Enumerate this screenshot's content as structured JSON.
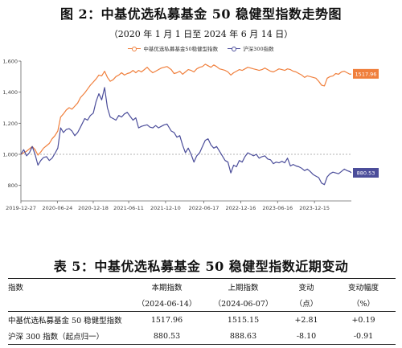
{
  "figure": {
    "title": "图 2：中基优选私募基金 50 稳健型指数走势图",
    "subtitle": "（2020 年 1 月 1 日至 2024 年 6 月 14 日）"
  },
  "chart_data": {
    "type": "line",
    "title": "图 2：中基优选私募基金 50 稳健型指数走势图",
    "subtitle": "（2020 年 1 月 1 日至 2024 年 6 月 14 日）",
    "legend_position": "top-center",
    "xlabel": "",
    "ylabel": "",
    "ylim": [
      700,
      1600
    ],
    "yticks": [
      800,
      1000,
      1200,
      1400,
      1600
    ],
    "ytick_labels": [
      "800",
      "1,000",
      "1,200",
      "1,400",
      "1,600"
    ],
    "xlim": [
      "2019-12-27",
      "2024-06-14"
    ],
    "xtick_labels": [
      "2019-12-27",
      "2020-06-24",
      "2020-12-18",
      "2021-06-11",
      "2021-12-10",
      "2022-06-17",
      "2022-12-16",
      "2023-06-16",
      "2023-12-15"
    ],
    "reference_line": 1000,
    "grid": false,
    "series": [
      {
        "name": "中基优选私募基金50稳健型指数",
        "color": "#f07f3c",
        "last_label": "1517.96",
        "points": [
          [
            "2019-12-27",
            1000
          ],
          [
            "2020-01-10",
            1010
          ],
          [
            "2020-01-24",
            1020
          ],
          [
            "2020-02-07",
            1035
          ],
          [
            "2020-02-21",
            1050
          ],
          [
            "2020-03-06",
            1030
          ],
          [
            "2020-03-20",
            995
          ],
          [
            "2020-04-03",
            1015
          ],
          [
            "2020-04-17",
            1040
          ],
          [
            "2020-05-01",
            1055
          ],
          [
            "2020-05-15",
            1070
          ],
          [
            "2020-05-29",
            1100
          ],
          [
            "2020-06-12",
            1120
          ],
          [
            "2020-06-26",
            1150
          ],
          [
            "2020-07-10",
            1240
          ],
          [
            "2020-07-24",
            1260
          ],
          [
            "2020-08-07",
            1285
          ],
          [
            "2020-08-21",
            1300
          ],
          [
            "2020-09-04",
            1290
          ],
          [
            "2020-09-18",
            1310
          ],
          [
            "2020-10-02",
            1330
          ],
          [
            "2020-10-16",
            1365
          ],
          [
            "2020-11-06",
            1395
          ],
          [
            "2020-11-20",
            1420
          ],
          [
            "2020-12-04",
            1445
          ],
          [
            "2020-12-18",
            1465
          ],
          [
            "2021-01-01",
            1485
          ],
          [
            "2021-01-15",
            1510
          ],
          [
            "2021-01-29",
            1505
          ],
          [
            "2021-02-12",
            1535
          ],
          [
            "2021-02-26",
            1495
          ],
          [
            "2021-03-12",
            1470
          ],
          [
            "2021-03-26",
            1480
          ],
          [
            "2021-04-09",
            1500
          ],
          [
            "2021-04-23",
            1510
          ],
          [
            "2021-05-07",
            1525
          ],
          [
            "2021-05-21",
            1510
          ],
          [
            "2021-06-04",
            1520
          ],
          [
            "2021-06-18",
            1525
          ],
          [
            "2021-07-02",
            1540
          ],
          [
            "2021-07-16",
            1525
          ],
          [
            "2021-07-30",
            1540
          ],
          [
            "2021-08-13",
            1530
          ],
          [
            "2021-08-27",
            1545
          ],
          [
            "2021-09-10",
            1560
          ],
          [
            "2021-09-24",
            1540
          ],
          [
            "2021-10-08",
            1525
          ],
          [
            "2021-10-22",
            1535
          ],
          [
            "2021-11-05",
            1545
          ],
          [
            "2021-11-19",
            1555
          ],
          [
            "2021-12-03",
            1560
          ],
          [
            "2021-12-17",
            1565
          ],
          [
            "2022-01-07",
            1545
          ],
          [
            "2022-01-21",
            1520
          ],
          [
            "2022-02-04",
            1525
          ],
          [
            "2022-02-18",
            1535
          ],
          [
            "2022-03-04",
            1515
          ],
          [
            "2022-03-18",
            1530
          ],
          [
            "2022-04-01",
            1545
          ],
          [
            "2022-04-15",
            1540
          ],
          [
            "2022-04-29",
            1530
          ],
          [
            "2022-05-13",
            1550
          ],
          [
            "2022-05-27",
            1560
          ],
          [
            "2022-06-10",
            1565
          ],
          [
            "2022-06-24",
            1580
          ],
          [
            "2022-07-08",
            1570
          ],
          [
            "2022-07-22",
            1560
          ],
          [
            "2022-08-05",
            1575
          ],
          [
            "2022-08-19",
            1565
          ],
          [
            "2022-09-02",
            1550
          ],
          [
            "2022-09-16",
            1545
          ],
          [
            "2022-09-30",
            1540
          ],
          [
            "2022-10-14",
            1530
          ],
          [
            "2022-10-28",
            1510
          ],
          [
            "2022-11-11",
            1525
          ],
          [
            "2022-11-25",
            1535
          ],
          [
            "2022-12-09",
            1545
          ],
          [
            "2022-12-23",
            1540
          ],
          [
            "2023-01-06",
            1550
          ],
          [
            "2023-01-20",
            1560
          ],
          [
            "2023-02-03",
            1555
          ],
          [
            "2023-02-17",
            1550
          ],
          [
            "2023-03-03",
            1545
          ],
          [
            "2023-03-17",
            1540
          ],
          [
            "2023-03-31",
            1545
          ],
          [
            "2023-04-14",
            1555
          ],
          [
            "2023-04-28",
            1545
          ],
          [
            "2023-05-12",
            1535
          ],
          [
            "2023-05-26",
            1530
          ],
          [
            "2023-06-09",
            1540
          ],
          [
            "2023-06-23",
            1550
          ],
          [
            "2023-07-07",
            1545
          ],
          [
            "2023-07-21",
            1540
          ],
          [
            "2023-08-04",
            1550
          ],
          [
            "2023-08-18",
            1545
          ],
          [
            "2023-09-01",
            1535
          ],
          [
            "2023-09-15",
            1530
          ],
          [
            "2023-09-29",
            1520
          ],
          [
            "2023-10-13",
            1510
          ],
          [
            "2023-10-27",
            1495
          ],
          [
            "2023-11-10",
            1505
          ],
          [
            "2023-11-24",
            1500
          ],
          [
            "2023-12-08",
            1495
          ],
          [
            "2023-12-22",
            1490
          ],
          [
            "2024-01-05",
            1470
          ],
          [
            "2024-01-19",
            1445
          ],
          [
            "2024-02-02",
            1440
          ],
          [
            "2024-02-16",
            1490
          ],
          [
            "2024-03-01",
            1500
          ],
          [
            "2024-03-15",
            1505
          ],
          [
            "2024-03-29",
            1520
          ],
          [
            "2024-04-12",
            1515
          ],
          [
            "2024-04-26",
            1530
          ],
          [
            "2024-05-10",
            1535
          ],
          [
            "2024-05-24",
            1525
          ],
          [
            "2024-06-07",
            1515
          ],
          [
            "2024-06-14",
            1518
          ]
        ]
      },
      {
        "name": "沪深300指数",
        "color": "#4b4d9a",
        "last_label": "880.53",
        "points": [
          [
            "2019-12-27",
            1000
          ],
          [
            "2020-01-10",
            1030
          ],
          [
            "2020-01-24",
            990
          ],
          [
            "2020-02-07",
            1010
          ],
          [
            "2020-02-21",
            1050
          ],
          [
            "2020-03-06",
            1000
          ],
          [
            "2020-03-20",
            930
          ],
          [
            "2020-04-03",
            960
          ],
          [
            "2020-04-17",
            980
          ],
          [
            "2020-05-01",
            985
          ],
          [
            "2020-05-15",
            960
          ],
          [
            "2020-05-29",
            975
          ],
          [
            "2020-06-12",
            1005
          ],
          [
            "2020-06-26",
            1040
          ],
          [
            "2020-07-10",
            1170
          ],
          [
            "2020-07-24",
            1140
          ],
          [
            "2020-08-07",
            1160
          ],
          [
            "2020-08-21",
            1165
          ],
          [
            "2020-09-04",
            1150
          ],
          [
            "2020-09-18",
            1120
          ],
          [
            "2020-10-02",
            1140
          ],
          [
            "2020-10-16",
            1175
          ],
          [
            "2020-11-06",
            1230
          ],
          [
            "2020-11-20",
            1220
          ],
          [
            "2020-12-04",
            1250
          ],
          [
            "2020-12-18",
            1265
          ],
          [
            "2021-01-01",
            1340
          ],
          [
            "2021-01-15",
            1390
          ],
          [
            "2021-01-29",
            1350
          ],
          [
            "2021-02-12",
            1430
          ],
          [
            "2021-02-26",
            1300
          ],
          [
            "2021-03-12",
            1240
          ],
          [
            "2021-03-26",
            1230
          ],
          [
            "2021-04-09",
            1220
          ],
          [
            "2021-04-23",
            1250
          ],
          [
            "2021-05-07",
            1240
          ],
          [
            "2021-05-21",
            1260
          ],
          [
            "2021-06-04",
            1270
          ],
          [
            "2021-06-18",
            1245
          ],
          [
            "2021-07-02",
            1220
          ],
          [
            "2021-07-16",
            1235
          ],
          [
            "2021-07-30",
            1170
          ],
          [
            "2021-08-13",
            1180
          ],
          [
            "2021-08-27",
            1185
          ],
          [
            "2021-09-10",
            1190
          ],
          [
            "2021-09-24",
            1175
          ],
          [
            "2021-10-08",
            1170
          ],
          [
            "2021-10-22",
            1185
          ],
          [
            "2021-11-05",
            1170
          ],
          [
            "2021-11-19",
            1180
          ],
          [
            "2021-12-03",
            1190
          ],
          [
            "2021-12-17",
            1195
          ],
          [
            "2022-01-07",
            1150
          ],
          [
            "2022-01-21",
            1140
          ],
          [
            "2022-02-04",
            1110
          ],
          [
            "2022-02-18",
            1120
          ],
          [
            "2022-03-04",
            1060
          ],
          [
            "2022-03-18",
            1010
          ],
          [
            "2022-04-01",
            1040
          ],
          [
            "2022-04-15",
            1000
          ],
          [
            "2022-04-29",
            950
          ],
          [
            "2022-05-13",
            990
          ],
          [
            "2022-05-27",
            1010
          ],
          [
            "2022-06-10",
            1050
          ],
          [
            "2022-06-24",
            1090
          ],
          [
            "2022-07-08",
            1100
          ],
          [
            "2022-07-22",
            1060
          ],
          [
            "2022-08-05",
            1040
          ],
          [
            "2022-08-19",
            1050
          ],
          [
            "2022-09-02",
            1020
          ],
          [
            "2022-09-16",
            990
          ],
          [
            "2022-09-30",
            960
          ],
          [
            "2022-10-14",
            950
          ],
          [
            "2022-10-28",
            880
          ],
          [
            "2022-11-11",
            930
          ],
          [
            "2022-11-25",
            920
          ],
          [
            "2022-12-09",
            960
          ],
          [
            "2022-12-23",
            950
          ],
          [
            "2023-01-06",
            985
          ],
          [
            "2023-01-20",
            1010
          ],
          [
            "2023-02-03",
            1000
          ],
          [
            "2023-02-17",
            990
          ],
          [
            "2023-03-03",
            1000
          ],
          [
            "2023-03-17",
            975
          ],
          [
            "2023-03-31",
            985
          ],
          [
            "2023-04-14",
            990
          ],
          [
            "2023-04-28",
            970
          ],
          [
            "2023-05-12",
            965
          ],
          [
            "2023-05-26",
            940
          ],
          [
            "2023-06-09",
            950
          ],
          [
            "2023-06-23",
            945
          ],
          [
            "2023-07-07",
            955
          ],
          [
            "2023-07-21",
            945
          ],
          [
            "2023-08-04",
            975
          ],
          [
            "2023-08-18",
            925
          ],
          [
            "2023-09-01",
            935
          ],
          [
            "2023-09-15",
            925
          ],
          [
            "2023-09-29",
            920
          ],
          [
            "2023-10-13",
            910
          ],
          [
            "2023-10-27",
            895
          ],
          [
            "2023-11-10",
            905
          ],
          [
            "2023-11-24",
            890
          ],
          [
            "2023-12-08",
            870
          ],
          [
            "2023-12-22",
            860
          ],
          [
            "2024-01-05",
            850
          ],
          [
            "2024-01-19",
            815
          ],
          [
            "2024-02-02",
            805
          ],
          [
            "2024-02-16",
            855
          ],
          [
            "2024-03-01",
            875
          ],
          [
            "2024-03-15",
            885
          ],
          [
            "2024-03-29",
            880
          ],
          [
            "2024-04-12",
            875
          ],
          [
            "2024-04-26",
            890
          ],
          [
            "2024-05-10",
            905
          ],
          [
            "2024-05-24",
            895
          ],
          [
            "2024-06-07",
            889
          ],
          [
            "2024-06-14",
            881
          ]
        ]
      }
    ]
  },
  "table": {
    "title": "表 5：中基优选私募基金 50 稳健型指数近期变动",
    "headers_top": [
      "指数",
      "本期指数",
      "上期指数",
      "变动",
      "变动幅度"
    ],
    "headers_bottom": [
      "",
      "（2024-06-14）",
      "（2024-06-07）",
      "（点）",
      "（%）"
    ],
    "rows": [
      [
        "中基优选私募基金 50 稳健型指数",
        "1517.96",
        "1515.15",
        "+2.81",
        "+0.19"
      ],
      [
        "沪深 300 指数（起点归一）",
        "880.53",
        "888.63",
        "-8.10",
        "-0.91"
      ]
    ]
  }
}
